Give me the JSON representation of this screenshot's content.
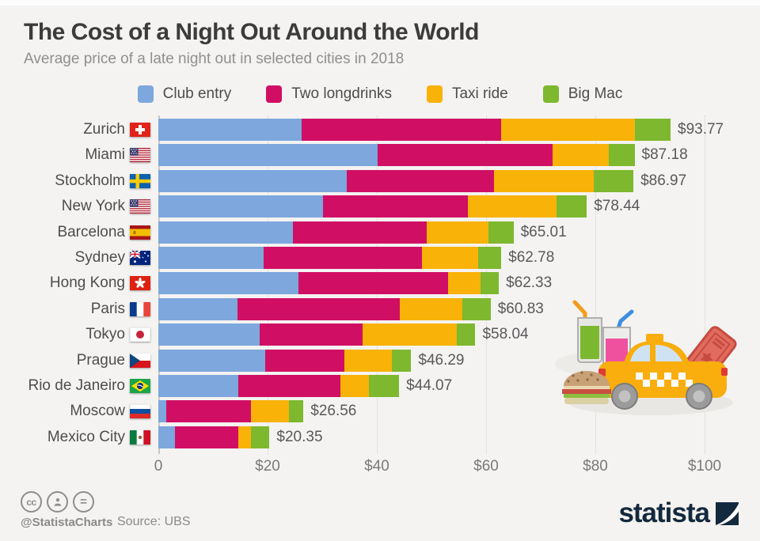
{
  "page": {
    "background": "#F4F3F1"
  },
  "header": {
    "title": "The Cost of a Night Out Around the World",
    "subtitle": "Average price of a late night out in selected cities in 2018"
  },
  "legend": [
    {
      "label": "Club entry",
      "color": "#7DA7DD"
    },
    {
      "label": "Two longdrinks",
      "color": "#D00F64"
    },
    {
      "label": "Taxi ride",
      "color": "#F9B208"
    },
    {
      "label": "Big Mac",
      "color": "#7DB82E"
    }
  ],
  "chart_data": {
    "type": "bar",
    "stacked": true,
    "orientation": "horizontal",
    "grid": "dotted-vertical",
    "legend_position": "top",
    "x_axis": {
      "min": 0,
      "max": 100,
      "ticks": [
        {
          "value": 0,
          "label": "0"
        },
        {
          "value": 20,
          "label": "$20"
        },
        {
          "value": 40,
          "label": "$40"
        },
        {
          "value": 60,
          "label": "$60"
        },
        {
          "value": 80,
          "label": "$80"
        },
        {
          "value": 100,
          "label": "$100"
        }
      ]
    },
    "categories": [
      "Zurich",
      "Miami",
      "Stockholm",
      "New York",
      "Barcelona",
      "Sydney",
      "Hong Kong",
      "Paris",
      "Tokyo",
      "Prague",
      "Rio de Janeiro",
      "Moscow",
      "Mexico City"
    ],
    "flags": [
      {
        "country": "switzerland",
        "code": "ch"
      },
      {
        "country": "usa",
        "code": "us"
      },
      {
        "country": "sweden",
        "code": "se"
      },
      {
        "country": "usa",
        "code": "us"
      },
      {
        "country": "spain",
        "code": "es"
      },
      {
        "country": "australia",
        "code": "au"
      },
      {
        "country": "hong-kong",
        "code": "hk"
      },
      {
        "country": "france",
        "code": "fr"
      },
      {
        "country": "japan",
        "code": "jp"
      },
      {
        "country": "czech-republic",
        "code": "cz"
      },
      {
        "country": "brazil",
        "code": "br"
      },
      {
        "country": "russia",
        "code": "ru"
      },
      {
        "country": "mexico",
        "code": "mx"
      }
    ],
    "series": [
      {
        "name": "Club entry",
        "color": "#7DA7DD",
        "values": [
          26.2,
          40.1,
          34.5,
          30.1,
          24.7,
          19.3,
          25.7,
          14.5,
          18.6,
          19.6,
          14.7,
          1.4,
          3.0
        ]
      },
      {
        "name": "Two longdrinks",
        "color": "#D00F64",
        "values": [
          36.5,
          32.1,
          27.0,
          26.6,
          24.5,
          28.9,
          27.4,
          29.7,
          18.8,
          14.5,
          18.6,
          15.6,
          11.6
        ]
      },
      {
        "name": "Taxi ride",
        "color": "#F9B208",
        "values": [
          24.6,
          10.3,
          18.2,
          16.2,
          11.2,
          10.3,
          5.9,
          11.4,
          17.2,
          8.7,
          5.3,
          6.9,
          2.4
        ]
      },
      {
        "name": "Big Mac",
        "color": "#7DB82E",
        "values": [
          6.47,
          4.68,
          7.27,
          5.54,
          4.61,
          4.28,
          3.33,
          5.23,
          3.44,
          3.49,
          5.47,
          2.66,
          3.35
        ]
      }
    ],
    "total_labels": [
      "$93.77",
      "$87.18",
      "$86.97",
      "$78.44",
      "$65.01",
      "$62.78",
      "$62.33",
      "$60.83",
      "$58.04",
      "$46.29",
      "$44.07",
      "$26.56",
      "$20.35"
    ]
  },
  "illustration": {
    "items": [
      "green-longdrink",
      "pink-longdrink",
      "ticket",
      "taxi",
      "big-mac-burger"
    ]
  },
  "footer": {
    "license_icons": [
      "cc",
      "attribution-person",
      "equals"
    ],
    "handle": "@StatistaCharts",
    "source": "Source: UBS",
    "brand": "statista"
  }
}
